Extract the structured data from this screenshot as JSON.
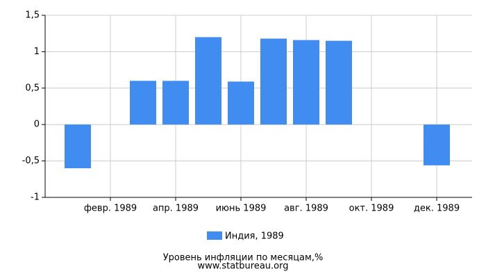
{
  "chart_data": {
    "type": "bar",
    "title": "Уровень инфляции по месяцам,%",
    "subtitle": "www.statbureau.org",
    "categories": [
      null,
      "февр. 1989",
      null,
      "апр. 1989",
      null,
      "июнь 1989",
      null,
      "авг. 1989",
      null,
      "окт. 1989",
      null,
      "дек. 1989"
    ],
    "series": [
      {
        "name": "Индия, 1989",
        "color": "#418cf0",
        "values": [
          -0.6,
          0,
          0.6,
          0.6,
          1.2,
          0.59,
          1.18,
          1.16,
          1.15,
          0,
          0,
          -0.56
        ]
      }
    ],
    "ylim": [
      -1,
      1.5
    ],
    "yticks": [
      {
        "value": -1,
        "label": "-1"
      },
      {
        "value": -0.5,
        "label": "-0,5"
      },
      0,
      {
        "value": 0.5,
        "label": "0,5"
      },
      1,
      {
        "value": 1.5,
        "label": "1,5"
      }
    ],
    "grid": true
  }
}
